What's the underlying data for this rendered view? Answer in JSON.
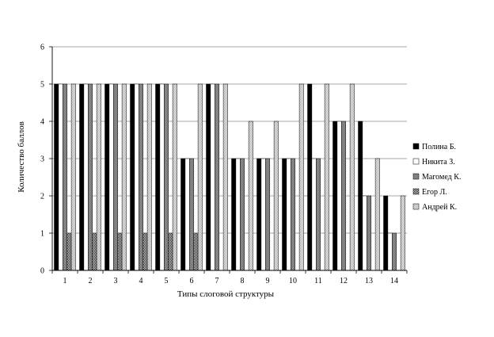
{
  "chart_data": {
    "type": "bar",
    "title": "",
    "xlabel": "Типы слоговой структуры",
    "ylabel": "Количество баллов",
    "categories": [
      "1",
      "2",
      "3",
      "4",
      "5",
      "6",
      "7",
      "8",
      "9",
      "10",
      "11",
      "12",
      "13",
      "14"
    ],
    "ylim": [
      0,
      6
    ],
    "yticks": [
      "0",
      "1",
      "2",
      "3",
      "4",
      "5",
      "6"
    ],
    "grid": "horizontal",
    "legend_position": "right",
    "series": [
      {
        "name": "Полина Б.",
        "values": [
          5,
          5,
          5,
          5,
          5,
          3,
          5,
          3,
          3,
          3,
          5,
          4,
          4,
          2
        ],
        "color": "#000000",
        "pattern": "solid-black"
      },
      {
        "name": "Никита З.",
        "values": [
          5,
          5,
          5,
          5,
          5,
          3,
          5,
          3,
          3,
          3,
          3,
          4,
          2,
          1
        ],
        "color": "#ffffff",
        "pattern": "white"
      },
      {
        "name": "Магомед К.",
        "values": [
          5,
          5,
          5,
          5,
          5,
          3,
          5,
          3,
          3,
          3,
          3,
          4,
          2,
          1
        ],
        "color": "#8c8c8c",
        "pattern": "gray"
      },
      {
        "name": "Егор Л.",
        "values": [
          1,
          1,
          1,
          1,
          1,
          1,
          0,
          0,
          0,
          0,
          0,
          0,
          0,
          0
        ],
        "color": "#222222",
        "pattern": "dark-check"
      },
      {
        "name": "Андрей К.",
        "values": [
          5,
          5,
          5,
          5,
          5,
          5,
          5,
          4,
          4,
          5,
          5,
          5,
          3,
          2
        ],
        "color": "#d4d4d4",
        "pattern": "light-dots"
      }
    ]
  }
}
